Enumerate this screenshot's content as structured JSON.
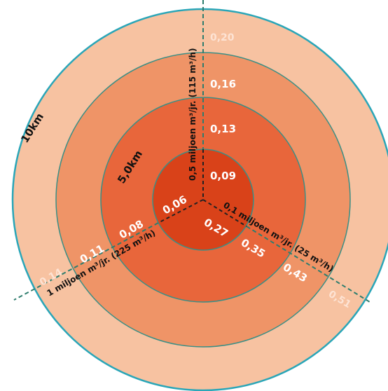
{
  "colors": {
    "ring_outer": "#f7c2a1",
    "ring_3": "#ef9467",
    "ring_2": "#e8663b",
    "ring_center": "#d94219",
    "outline": "#2aa6b8",
    "axis": "#2e7d6e"
  },
  "rings": {
    "outer_label": "10km",
    "middle_label": "5,0km"
  },
  "axes": {
    "vertical": {
      "label": "0,5 miljoen m³/jr. (115 m³/h)",
      "values": [
        "0,09",
        "0,13",
        "0,16",
        "0,20"
      ]
    },
    "right": {
      "label": "0,1 miljoen m³/jr. (25 m³/h)",
      "values": [
        "0,27",
        "0,35",
        "0,43",
        "0,51"
      ]
    },
    "left": {
      "label": "1 miljoen m³/jr. (225 m³/h)",
      "values": [
        "0,06",
        "0,08",
        "0,11",
        "0,14"
      ]
    }
  }
}
